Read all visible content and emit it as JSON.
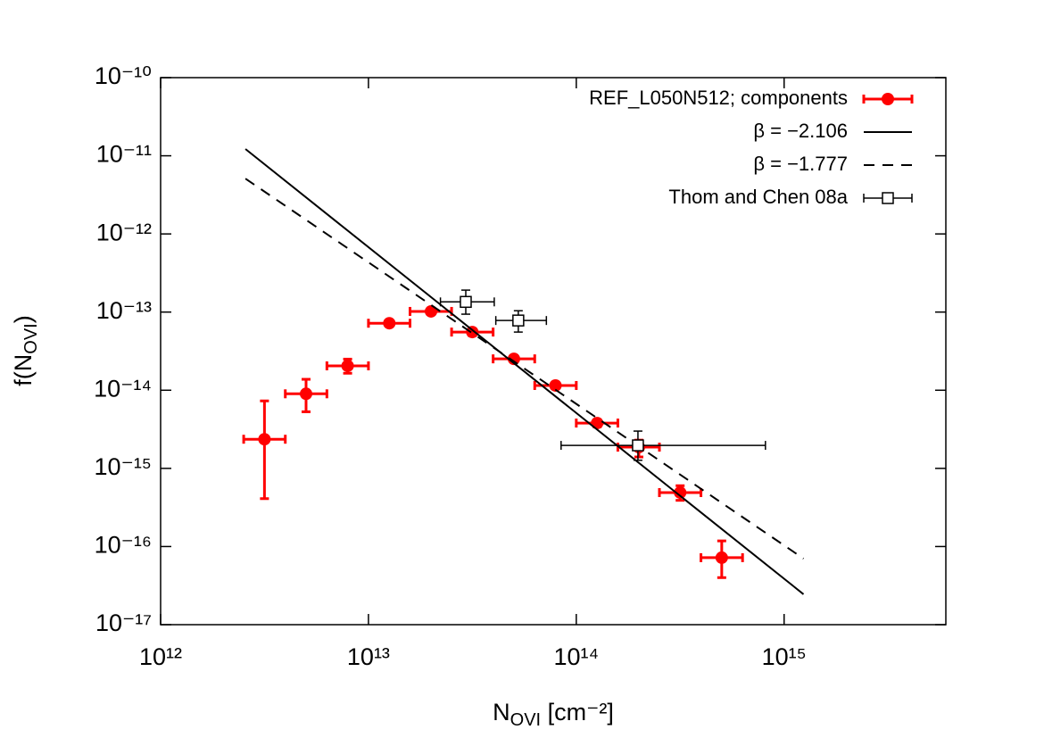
{
  "chart_data": {
    "type": "scatter",
    "xlabel": {
      "main": "N",
      "sub": "OVI",
      "rest": " [cm⁻²]"
    },
    "ylabel": {
      "main": "f(N",
      "sub": "OVI",
      "rest": ")"
    },
    "xscale": "log",
    "yscale": "log",
    "xlim": [
      1000000000000.0,
      6000000000000000.0
    ],
    "ylim": [
      1e-17,
      1e-10
    ],
    "xticks": [
      {
        "value": 1000000000000.0,
        "label": "10¹²"
      },
      {
        "value": 10000000000000.0,
        "label": "10¹³"
      },
      {
        "value": 100000000000000.0,
        "label": "10¹⁴"
      },
      {
        "value": 1000000000000000.0,
        "label": "10¹⁵"
      }
    ],
    "yticks": [
      {
        "value": 1e-17,
        "label": "10⁻¹⁷"
      },
      {
        "value": 1e-16,
        "label": "10⁻¹⁶"
      },
      {
        "value": 1e-15,
        "label": "10⁻¹⁵"
      },
      {
        "value": 1e-14,
        "label": "10⁻¹⁴"
      },
      {
        "value": 1e-13,
        "label": "10⁻¹³"
      },
      {
        "value": 1e-12,
        "label": "10⁻¹²"
      },
      {
        "value": 1e-11,
        "label": "10⁻¹¹"
      },
      {
        "value": 1e-10,
        "label": "10⁻¹⁰"
      }
    ],
    "legend": "upper right",
    "series": [
      {
        "name": "REF_L050N512; components",
        "kind": "errorbar",
        "marker": "circle",
        "color": "#ff0000",
        "x": [
          3160000000000.0,
          5010000000000.0,
          7940000000000.0,
          12600000000000.0,
          20000000000000.0,
          31600000000000.0,
          50100000000000.0,
          79400000000000.0,
          126000000000000.0,
          200000000000000.0,
          316000000000000.0,
          501000000000000.0
        ],
        "values": [
          2.36e-15,
          9e-15,
          2.05e-14,
          7.2e-14,
          1.02e-13,
          5.55e-14,
          2.52e-14,
          1.15e-14,
          3.8e-15,
          1.87e-15,
          4.9e-16,
          7.2e-17
        ],
        "x_low": [
          2510000000000.0,
          3980000000000.0,
          6310000000000.0,
          10000000000000.0,
          15850000000000.0,
          25120000000000.0,
          39800000000000.0,
          63100000000000.0,
          100000000000000.0,
          158500000000000.0,
          251200000000000.0,
          398000000000000.0
        ],
        "x_high": [
          3980000000000.0,
          6310000000000.0,
          10000000000000.0,
          15850000000000.0,
          25120000000000.0,
          39800000000000.0,
          63100000000000.0,
          100000000000000.0,
          158500000000000.0,
          251200000000000.0,
          398000000000000.0,
          631000000000000.0
        ],
        "y_low": [
          4.1e-16,
          5.3e-15,
          1.65e-14,
          6.6e-14,
          9.4e-14,
          5e-14,
          2.3e-14,
          1.05e-14,
          3.4e-15,
          1.4e-15,
          3.9e-16,
          4e-17
        ],
        "y_high": [
          7.3e-15,
          1.38e-14,
          2.5e-14,
          7.8e-14,
          1.1e-13,
          6.1e-14,
          2.75e-14,
          1.25e-14,
          4.2e-15,
          2.3e-15,
          6e-16,
          1.18e-16
        ]
      },
      {
        "name": "β = −2.106",
        "kind": "line",
        "dash": "solid",
        "color": "#000000",
        "x": [
          2560000000000.0,
          1240000000000000.0
        ],
        "values": [
          1.22e-11,
          2.45e-17
        ]
      },
      {
        "name": "β = −1.777",
        "kind": "line",
        "dash": "dashed",
        "color": "#000000",
        "x": [
          2560000000000.0,
          1240000000000000.0
        ],
        "values": [
          5.1e-12,
          7e-17
        ]
      },
      {
        "name": "Thom and Chen 08a",
        "kind": "errorbar",
        "marker": "open-square",
        "color": "#000000",
        "x": [
          29400000000000.0,
          52600000000000.0,
          198000000000000.0
        ],
        "values": [
          1.35e-13,
          7.8e-14,
          1.97e-15
        ],
        "x_low": [
          22200000000000.0,
          41000000000000.0,
          84500000000000.0
        ],
        "x_high": [
          40300000000000.0,
          71800000000000.0,
          813000000000000.0
        ],
        "y_low": [
          9.4e-14,
          5.55e-14,
          1.27e-15
        ],
        "y_high": [
          1.91e-13,
          1.04e-13,
          3e-15
        ]
      }
    ]
  }
}
